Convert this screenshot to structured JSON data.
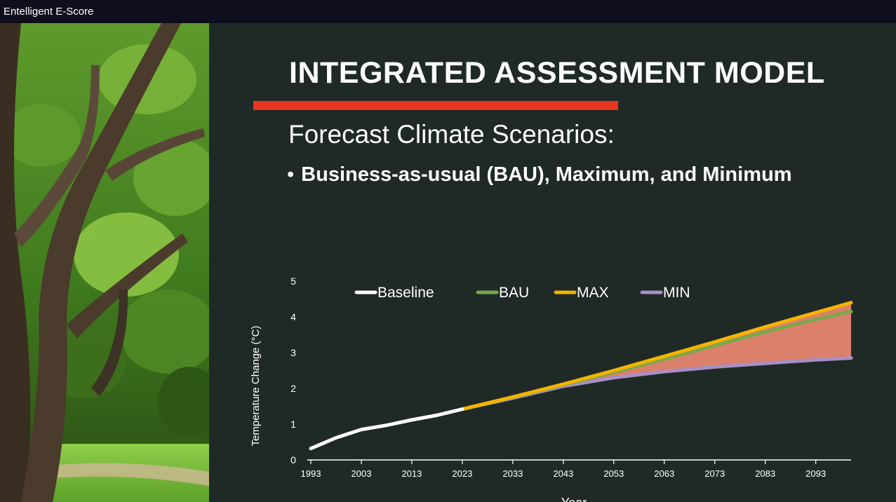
{
  "window": {
    "title": "Entelligent E-Score"
  },
  "slide": {
    "heading": "INTEGRATED ASSESSMENT MODEL",
    "subheading": "Forecast Climate Scenarios:",
    "bullet": "Business-as-usual (BAU), Maximum, and Minimum",
    "accent_color": "#e8351f",
    "background_color": "#1f2a27",
    "photo_description_icon": "forest-photo"
  },
  "chart_data": {
    "type": "line",
    "xlabel": "Year",
    "ylabel": "Temperature Change (°C)",
    "xlim": [
      1993,
      2100
    ],
    "ylim": [
      0,
      5
    ],
    "xticks": [
      "1993",
      "2003",
      "2013",
      "2023",
      "2033",
      "2043",
      "2053",
      "2063",
      "2073",
      "2083",
      "2093"
    ],
    "yticks": [
      "0",
      "1",
      "2",
      "3",
      "4",
      "5"
    ],
    "legend_position": "top",
    "shaded_band": {
      "between": [
        "MAX",
        "MIN"
      ],
      "color": "#f08a73"
    },
    "series": [
      {
        "name": "Baseline",
        "color": "#ffffff",
        "x": [
          1993,
          1998,
          2003,
          2008,
          2013,
          2018,
          2023
        ],
        "y": [
          0.32,
          0.62,
          0.85,
          0.97,
          1.12,
          1.25,
          1.42
        ]
      },
      {
        "name": "BAU",
        "color": "#7aa84a",
        "x": [
          2023,
          2033,
          2043,
          2053,
          2063,
          2073,
          2083,
          2093,
          2100
        ],
        "y": [
          1.42,
          1.75,
          2.1,
          2.45,
          2.82,
          3.2,
          3.58,
          3.93,
          4.15
        ]
      },
      {
        "name": "MAX",
        "color": "#f5b400",
        "x": [
          2023,
          2033,
          2043,
          2053,
          2063,
          2073,
          2083,
          2093,
          2100
        ],
        "y": [
          1.42,
          1.76,
          2.12,
          2.5,
          2.9,
          3.3,
          3.72,
          4.12,
          4.4
        ]
      },
      {
        "name": "MIN",
        "color": "#a88fc4",
        "x": [
          2023,
          2033,
          2043,
          2053,
          2063,
          2073,
          2083,
          2093,
          2100
        ],
        "y": [
          1.42,
          1.73,
          2.06,
          2.3,
          2.47,
          2.6,
          2.7,
          2.8,
          2.85
        ]
      }
    ]
  }
}
